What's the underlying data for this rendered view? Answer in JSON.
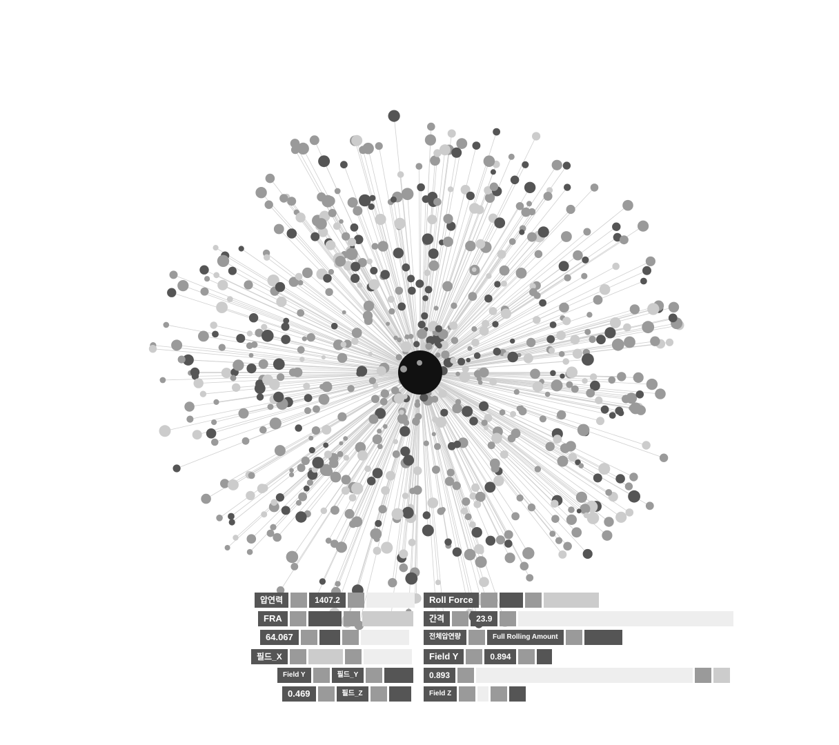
{
  "diagram": {
    "colors": {
      "hub": "#111111",
      "dark": "#555555",
      "mid": "#9a9a9a",
      "light": "#cccccc",
      "pale": "#eeeeee"
    }
  },
  "legend": {
    "left": [
      {
        "label": "압연력",
        "swatches": [
          "mid"
        ],
        "value": "1407.2",
        "after": [
          "mid",
          "pale"
        ]
      },
      {
        "label": "FRA",
        "swatches": [
          "mid",
          "dark",
          "mid",
          "light"
        ]
      },
      {
        "label": "64.067",
        "swatches": [
          "mid",
          "dark",
          "mid",
          "pale"
        ]
      },
      {
        "label": "필드_X",
        "swatches": [
          "mid",
          "light",
          "mid",
          "pale"
        ]
      },
      {
        "label": "Field Y",
        "swatches": [],
        "value": "필드_Y",
        "after": [
          "mid",
          "dark"
        ]
      },
      {
        "label": "0.469",
        "swatches": [
          "mid"
        ],
        "value": "필드_Z",
        "after": [
          "mid",
          "dark"
        ]
      }
    ],
    "right": [
      {
        "label": "Roll Force",
        "swatches": [
          "mid",
          "dark",
          "mid",
          "light"
        ]
      },
      {
        "label": "간격",
        "swatches": [
          "mid"
        ],
        "value": "23.9",
        "after": [
          "mid",
          "pale"
        ]
      },
      {
        "label": "전체압연량",
        "swatches": [
          "mid"
        ],
        "value": "Full Rolling Amount",
        "after": [
          "mid",
          "dark"
        ]
      },
      {
        "label": "Field Y",
        "swatches": [
          "mid"
        ],
        "value": "0.894",
        "after": [
          "mid",
          "dark"
        ]
      },
      {
        "label": "0.893",
        "swatches": [
          "mid",
          "pale",
          "mid",
          "light"
        ]
      },
      {
        "label": "Field Z",
        "swatches": [
          "mid",
          "pale",
          "mid",
          "dark"
        ]
      }
    ]
  }
}
